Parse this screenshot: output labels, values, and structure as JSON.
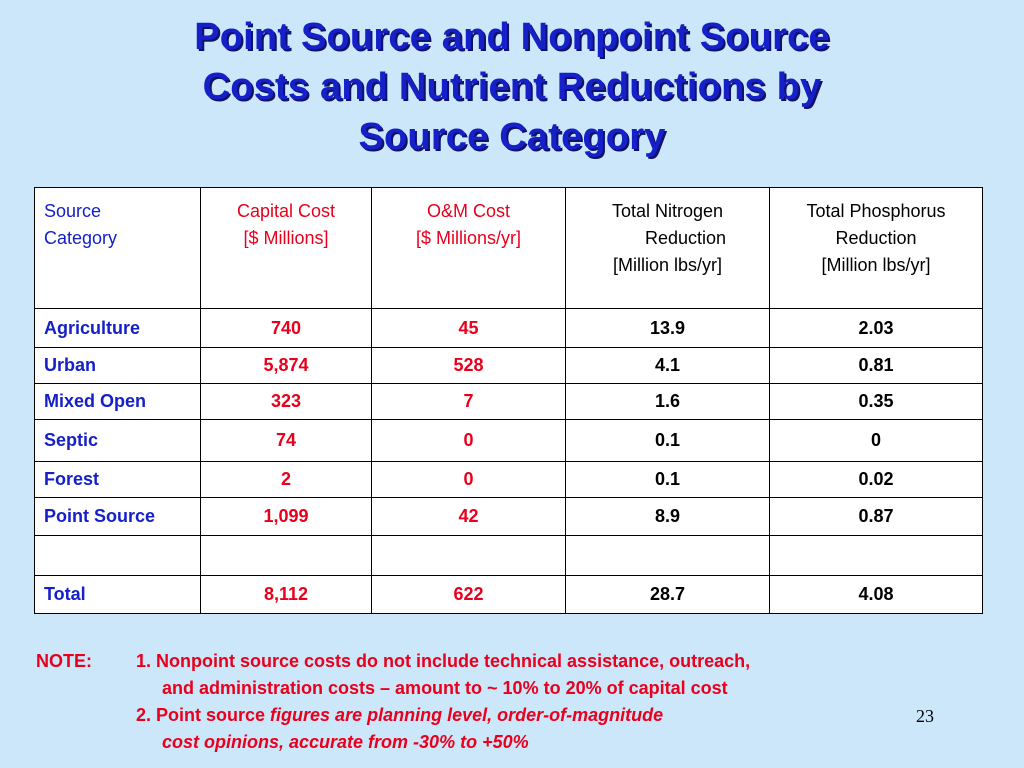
{
  "title": {
    "line1": "Point Source and Nonpoint Source",
    "line2": "Costs and Nutrient Reductions by",
    "line3": "Source Category"
  },
  "table": {
    "headers": [
      [
        "Source",
        "Category",
        ""
      ],
      [
        "Capital Cost",
        "[$ Millions]",
        ""
      ],
      [
        "O&M Cost",
        "[$ Millions/yr]",
        ""
      ],
      [
        "Total Nitrogen",
        "Reduction",
        "[Million lbs/yr]"
      ],
      [
        "Total Phosphorus",
        "Reduction",
        "[Million lbs/yr]"
      ]
    ],
    "rows": [
      [
        "Agriculture",
        "740",
        "45",
        "13.9",
        "2.03"
      ],
      [
        "Urban",
        "5,874",
        "528",
        "4.1",
        "0.81"
      ],
      [
        "Mixed Open",
        "323",
        "7",
        "1.6",
        "0.35"
      ],
      [
        "Septic",
        "74",
        "0",
        "0.1",
        "0"
      ],
      [
        "Forest",
        "2",
        "0",
        "0.1",
        "0.02"
      ],
      [
        "Point Source",
        "1,099",
        "42",
        "8.9",
        "0.87"
      ],
      [
        "",
        "",
        "",
        "",
        ""
      ],
      [
        "Total",
        "8,112",
        "622",
        "28.7",
        "4.08"
      ]
    ]
  },
  "note": {
    "label": "NOTE:",
    "item1_line1": "1. Nonpoint source costs do not include technical assistance, outreach,",
    "item1_line2": "and administration costs – amount to ~ 10% to 20% of capital cost",
    "item2_prefix": "2. Point source ",
    "item2_italic": "figures are planning level, order-of-magnitude",
    "item2_line2": "cost opinions, accurate from -30% to +50%"
  },
  "page_number": "23",
  "colors": {
    "background": "#cce6fa",
    "title": "#1520c8",
    "category_text": "#1520c8",
    "cost_text": "#e8001c",
    "note_text": "#e8001c"
  }
}
